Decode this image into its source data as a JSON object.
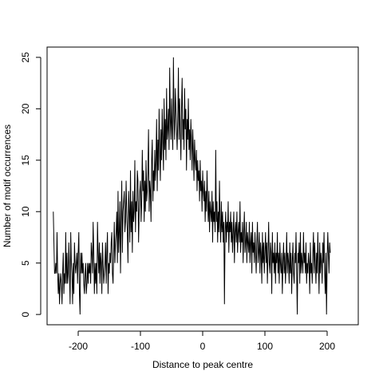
{
  "chart_data": {
    "type": "line",
    "title": "",
    "xlabel": "Distance to peak centre",
    "ylabel": "Number of motif occurrences",
    "xlim": [
      -250,
      250
    ],
    "ylim": [
      -1,
      26
    ],
    "x_ticks": [
      -200,
      -100,
      0,
      100,
      200
    ],
    "y_ticks": [
      0,
      5,
      10,
      15,
      20,
      25
    ],
    "x_tick_labels": [
      "-200",
      "-100",
      "0",
      "100",
      "200"
    ],
    "y_tick_labels": [
      "0",
      "5",
      "10",
      "15",
      "20",
      "25"
    ],
    "x_step": 1,
    "x_start": -240,
    "series": [
      {
        "values": [
          10,
          7,
          4,
          4,
          5,
          4,
          8,
          4,
          2,
          4,
          1,
          3,
          4,
          3,
          1,
          4,
          6,
          2,
          4,
          3,
          8,
          3,
          6,
          3,
          4,
          7,
          4,
          1,
          8,
          5,
          4,
          1,
          5,
          2,
          7,
          5,
          4,
          5,
          6,
          3,
          6,
          8,
          2,
          0,
          6,
          4,
          6,
          4,
          5,
          3,
          2,
          4,
          5,
          2,
          3,
          5,
          3,
          5,
          4,
          5,
          3,
          7,
          6,
          4,
          9,
          6,
          2,
          5,
          3,
          5,
          2,
          9,
          6,
          4,
          7,
          3,
          6,
          5,
          2,
          7,
          5,
          3,
          4,
          5,
          7,
          3,
          6,
          8,
          2,
          5,
          4,
          6,
          5,
          7,
          8,
          4,
          3,
          6,
          9,
          5,
          7,
          8,
          10,
          5,
          12,
          6,
          8,
          11,
          4,
          9,
          13,
          6,
          10,
          11,
          12,
          8,
          9,
          13,
          10,
          8,
          5,
          12,
          10,
          7,
          14,
          8,
          11,
          6,
          12,
          9,
          10,
          15,
          8,
          11,
          10,
          14,
          13,
          7,
          10,
          12,
          13,
          9,
          11,
          16,
          12,
          14,
          9,
          13,
          10,
          15,
          11,
          12,
          14,
          18,
          10,
          13,
          12,
          9,
          15,
          17,
          11,
          14,
          12,
          16,
          13,
          15,
          19,
          12,
          17,
          14,
          20,
          16,
          13,
          18,
          15,
          20,
          17,
          14,
          21,
          16,
          19,
          15,
          22,
          17,
          18,
          20,
          16,
          24,
          19,
          17,
          21,
          18,
          16,
          25,
          19,
          17,
          22,
          20,
          18,
          16,
          19,
          24,
          17,
          21,
          18,
          15,
          20,
          23,
          17,
          19,
          16,
          22,
          18,
          20,
          14,
          19,
          17,
          21,
          16,
          18,
          15,
          19,
          17,
          14,
          18,
          16,
          13,
          17,
          15,
          14,
          16,
          12,
          15,
          13,
          14,
          11,
          15,
          12,
          13,
          10,
          14,
          12,
          11,
          13,
          9,
          12,
          10,
          14,
          11,
          9,
          12,
          8,
          11,
          10,
          9,
          12,
          7,
          11,
          9,
          10,
          8,
          16,
          9,
          11,
          7,
          10,
          8,
          13,
          9,
          7,
          11,
          8,
          10,
          7,
          9,
          1,
          8,
          10,
          7,
          9,
          8,
          11,
          6,
          9,
          8,
          10,
          7,
          9,
          6,
          8,
          10,
          5,
          8,
          9,
          7,
          10,
          6,
          8,
          9,
          7,
          11,
          6,
          8,
          7,
          9,
          5,
          8,
          10,
          6,
          7,
          9,
          5,
          8,
          7,
          6,
          9,
          5,
          7,
          8,
          4,
          9,
          6,
          7,
          5,
          8,
          6,
          4,
          7,
          9,
          5,
          6,
          8,
          4,
          7,
          6,
          3,
          8,
          5,
          7,
          4,
          6,
          8,
          5,
          7,
          3,
          6,
          9,
          5,
          4,
          7,
          6,
          2,
          8,
          5,
          6,
          4,
          7,
          3,
          6,
          5,
          8,
          4,
          6,
          3,
          7,
          5,
          4,
          6,
          2,
          5,
          7,
          4,
          6,
          3,
          5,
          8,
          4,
          6,
          5,
          3,
          7,
          4,
          6,
          2,
          5,
          7,
          4,
          3,
          6,
          5,
          8,
          4,
          0,
          6,
          5,
          7,
          3,
          8,
          4,
          6,
          5,
          4,
          8,
          5,
          6,
          4,
          7,
          3,
          5,
          4,
          6,
          5,
          2,
          7,
          4,
          5,
          3,
          6,
          8,
          4,
          7,
          5,
          3,
          6,
          4,
          8,
          5,
          2,
          7,
          4,
          6,
          5,
          3,
          7,
          5,
          8,
          4,
          2,
          6,
          0,
          5,
          8,
          6,
          4,
          7,
          6
        ]
      }
    ]
  }
}
